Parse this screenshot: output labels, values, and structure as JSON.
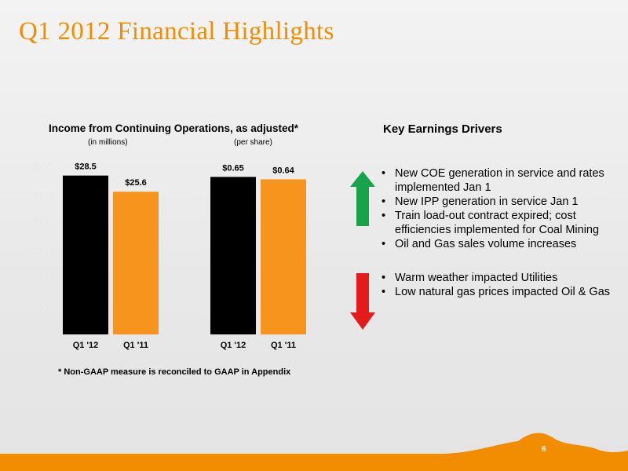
{
  "slide": {
    "title": "Q1 2012 Financial Highlights",
    "page_number": "6"
  },
  "chart_data": {
    "type": "bar",
    "title": "Income from Continuing Operations, as adjusted*",
    "y_ticks": [
      "$30.0",
      "$25.0",
      "$20.0",
      "$15.0",
      "$10.0",
      "$5.0",
      "$-"
    ],
    "ylim": [
      0,
      30
    ],
    "grid": false,
    "colors": {
      "Q1 '12": "#000000",
      "Q1 '11": "#f7941d"
    },
    "groups": [
      {
        "subtitle": "(in millions)",
        "categories": [
          "Q1 '12",
          "Q1 '11"
        ],
        "values": [
          28.5,
          25.6
        ],
        "labels": [
          "$28.5",
          "$25.6"
        ]
      },
      {
        "subtitle": "(per share)",
        "categories": [
          "Q1 '12",
          "Q1 '11"
        ],
        "values": [
          0.65,
          0.64
        ],
        "labels": [
          "$0.65",
          "$0.64"
        ]
      }
    ]
  },
  "footnote": "* Non-GAAP measure is reconciled to GAAP in Appendix",
  "drivers": {
    "heading": "Key Earnings Drivers",
    "positive": [
      "New COE generation in service and rates implemented Jan 1",
      "New IPP generation in service Jan 1",
      "Train load-out contract expired; cost efficiencies implemented for Coal Mining",
      "Oil and Gas sales volume increases"
    ],
    "negative": [
      "Warm weather impacted Utilities",
      "Low natural gas prices impacted Oil & Gas"
    ],
    "icons": {
      "positive": "up-arrow-icon",
      "negative": "down-arrow-icon"
    },
    "icon_colors": {
      "positive": "#16a34a",
      "negative": "#e31b1b"
    }
  }
}
